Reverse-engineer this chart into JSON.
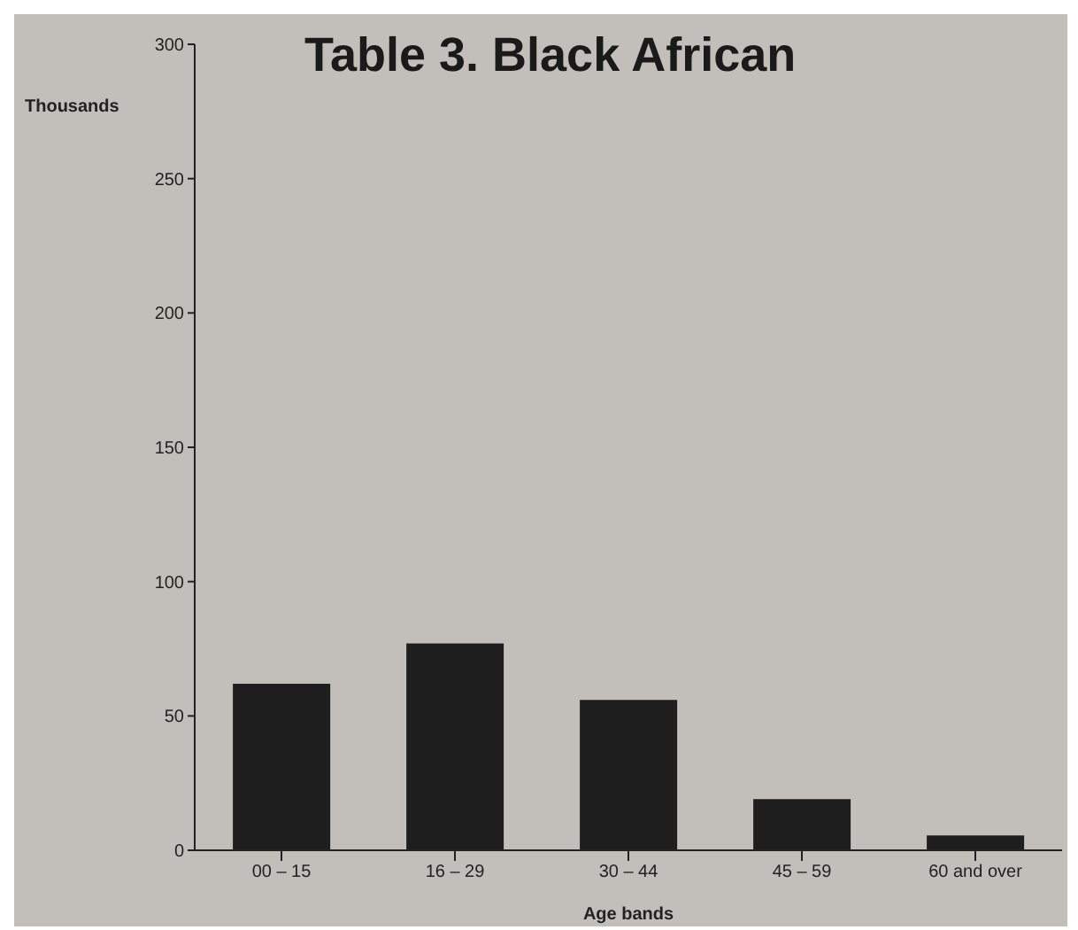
{
  "chart_data": {
    "type": "bar",
    "title": "Table 3. Black African",
    "ylabel": "Thousands",
    "xlabel": "Age bands",
    "categories": [
      "00 – 15",
      "16 – 29",
      "30 – 44",
      "45 – 59",
      "60 and over"
    ],
    "values": [
      62,
      77,
      56,
      19,
      5.5
    ],
    "color": "#1e1e1e",
    "ylim": [
      0,
      300
    ],
    "yticks": [
      0,
      50,
      100,
      150,
      200,
      250,
      300
    ],
    "grid": false,
    "legend": false
  }
}
